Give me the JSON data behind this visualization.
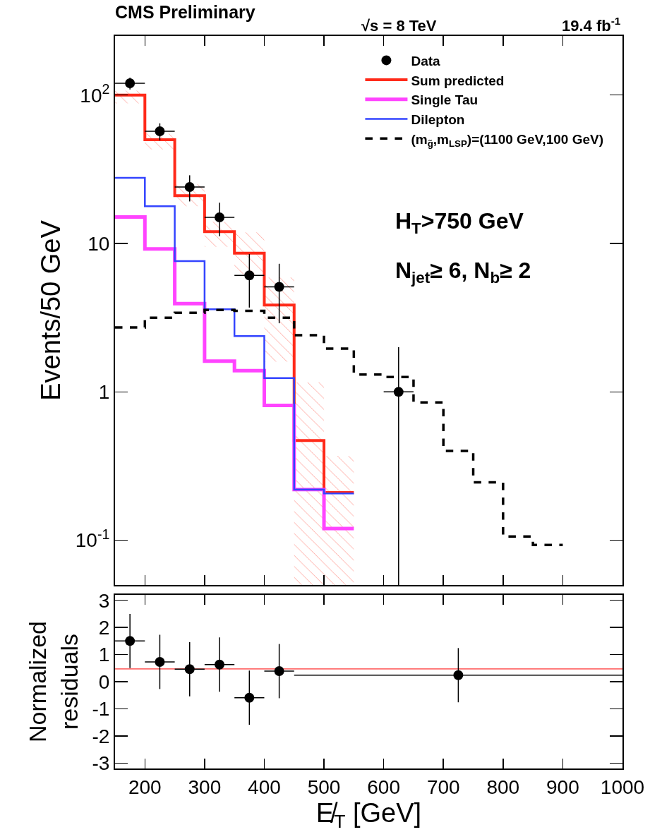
{
  "chart_data": [
    {
      "type": "step",
      "title": "CMS Preliminary",
      "ylabel": "Events/50 GeV",
      "log": true,
      "legend": "top right",
      "tick_labels": "y",
      "xlim": [
        150,
        1000
      ],
      "xticks": [
        200,
        300,
        400,
        500,
        600,
        700,
        800,
        900,
        1000
      ],
      "ylim": [
        0.05,
        250
      ],
      "yticks": [
        {
          "value": 0.1,
          "label": "10$^{-1}$"
        },
        1,
        10,
        {
          "value": 100,
          "label": "10$^{2}$"
        }
      ],
      "annotations": [
        "√s = 8 TeV",
        "19.4 fb$^{-1}$",
        "H$_{T}$>750 GeV",
        "N$_{jet}$≥ 6, N$_{b}$≥ 2"
      ],
      "series": [
        {
          "name": "Data",
          "type": "scatter",
          "marker": "circle",
          "color": "#000000",
          "x": [
            175,
            225,
            275,
            325,
            375,
            425,
            625
          ],
          "values": [
            120,
            57,
            24,
            15,
            6.1,
            5.1,
            1
          ],
          "errors": [
            11,
            7.5,
            4.8,
            3.8,
            2.4,
            2.2,
            [
              0.05,
              2
            ]
          ],
          "xerrors": [
            25,
            25,
            25,
            25,
            25,
            25,
            25
          ]
        },
        {
          "name": "Sum predicted",
          "color": "#ff2a1a",
          "x": [
            150,
            200,
            250,
            300,
            350,
            400,
            450,
            500,
            550
          ],
          "values": [
            100,
            50,
            21,
            12,
            8.6,
            3.85,
            0.47,
            0.21,
            0.21
          ],
          "lower": [
            88,
            43,
            17.8,
            9.5,
            6.2,
            1.6,
            0.05,
            0.05,
            0.05
          ],
          "upper": [
            107,
            55,
            25,
            14,
            11.9,
            5.9,
            1.16,
            0.37,
            0.37
          ]
        },
        {
          "name": "Single Tau",
          "color": "#ff44ff",
          "x": [
            150,
            200,
            250,
            300,
            350,
            400,
            450,
            500,
            550
          ],
          "values": [
            15.1,
            9.2,
            3.93,
            1.61,
            1.39,
            0.81,
            0.22,
            0.12,
            0.12
          ]
        },
        {
          "name": "Dilepton",
          "color": "#3344ff",
          "x": [
            150,
            200,
            250,
            300,
            350,
            400,
            450,
            500,
            550
          ],
          "values": [
            27.7,
            17.8,
            7.6,
            3.6,
            2.38,
            1.24,
            0.22,
            0.207,
            0.207
          ]
        },
        {
          "name": "(m$_{g̃}$,m$_{LSP}$)=(1100 GeV,100 GeV)",
          "line_style": "dashed",
          "color": "#000000",
          "x": [
            150,
            200,
            250,
            300,
            350,
            400,
            450,
            500,
            550,
            600,
            650,
            700,
            750,
            800,
            850,
            900
          ],
          "values": [
            2.72,
            3.16,
            3.41,
            3.56,
            3.52,
            3.16,
            2.41,
            1.96,
            1.31,
            1.26,
            0.85,
            0.4,
            0.246,
            0.106,
            0.093,
            0.093
          ]
        }
      ]
    },
    {
      "type": "scatter",
      "xlabel": "E̸$_{T}$ [GeV]",
      "ylabel": "Normalized\nresiduals",
      "xlim": [
        150,
        1000
      ],
      "xticks": [
        200,
        300,
        400,
        500,
        600,
        700,
        800,
        900,
        1000
      ],
      "ylim": [
        -3.2,
        3.2
      ],
      "yticks": [
        -3,
        -2,
        -1,
        0,
        1,
        2,
        3
      ],
      "ref_lines": [
        {
          "axis": "y",
          "value": 0.47,
          "color": "#ff0000"
        }
      ],
      "series": [
        {
          "marker": "circle",
          "color": "#000000",
          "x": [
            175,
            225,
            275,
            325,
            375,
            425,
            725
          ],
          "values": [
            1.5,
            0.73,
            0.46,
            0.63,
            -0.59,
            0.39,
            0.24
          ],
          "errors": [
            1,
            1,
            1,
            1,
            1,
            1,
            1
          ],
          "xerrors": [
            25,
            25,
            25,
            25,
            25,
            25,
            275
          ]
        }
      ]
    }
  ]
}
